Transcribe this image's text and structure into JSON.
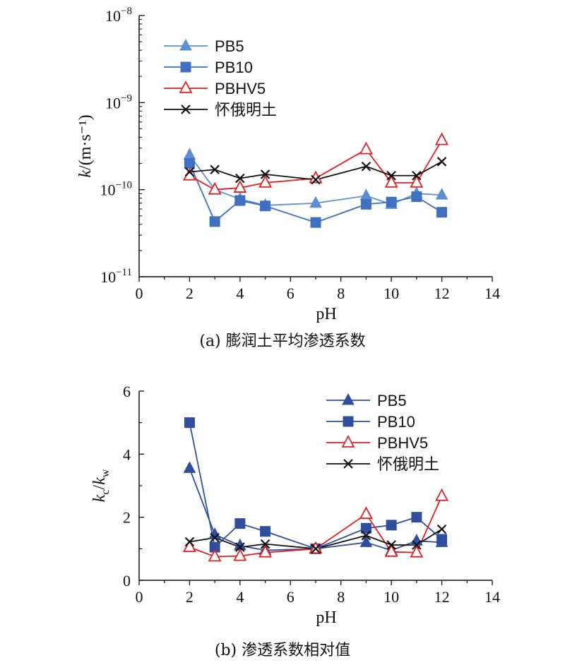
{
  "chart_data": [
    {
      "type": "line",
      "caption": "(a) 膨润土平均渗透系数",
      "xlabel": "pH",
      "ylabel": "k/(m·s⁻¹)",
      "yscale": "log",
      "xlim": [
        0,
        14
      ],
      "ylim": [
        1e-11,
        1e-08
      ],
      "x_ticks": [
        "0",
        "2",
        "4",
        "6",
        "8",
        "10",
        "12",
        "14"
      ],
      "y_ticks": [
        {
          "value": 1e-11,
          "base": "10",
          "exp": "−11"
        },
        {
          "value": 1e-10,
          "base": "10",
          "exp": "−10"
        },
        {
          "value": 1e-09,
          "base": "10",
          "exp": "−9"
        },
        {
          "value": 1e-08,
          "base": "10",
          "exp": "−8"
        }
      ],
      "legend_position": "top-left",
      "series": [
        {
          "name": "PB5",
          "color": "#5b8fd0",
          "marker": "triangle-filled",
          "x": [
            2,
            3,
            4,
            5,
            7,
            9,
            10,
            11,
            12
          ],
          "y": [
            2.5e-10,
            1e-10,
            7.8e-11,
            6.6e-11,
            7e-11,
            8.5e-11,
            6.8e-11,
            9e-11,
            8.7e-11
          ]
        },
        {
          "name": "PB10",
          "color": "#3f6fc0",
          "marker": "square-filled",
          "x": [
            2,
            3,
            4,
            5,
            7,
            9,
            10,
            11,
            12
          ],
          "y": [
            2e-10,
            4.3e-11,
            7.5e-11,
            6.5e-11,
            4.2e-11,
            6.8e-11,
            7.2e-11,
            8.3e-11,
            5.5e-11
          ]
        },
        {
          "name": "PBHV5",
          "color": "#e02020",
          "marker": "triangle-open",
          "x": [
            2,
            3,
            4,
            5,
            7,
            9,
            10,
            11,
            12
          ],
          "y": [
            1.45e-10,
            1e-10,
            1.05e-10,
            1.2e-10,
            1.35e-10,
            2.9e-10,
            1.2e-10,
            1.2e-10,
            3.7e-10
          ]
        },
        {
          "name": "怀俄明土",
          "color": "#111111",
          "marker": "x",
          "x": [
            2,
            3,
            4,
            5,
            7,
            9,
            10,
            11,
            12
          ],
          "y": [
            1.6e-10,
            1.7e-10,
            1.35e-10,
            1.5e-10,
            1.3e-10,
            1.85e-10,
            1.45e-10,
            1.45e-10,
            2.1e-10
          ]
        }
      ]
    },
    {
      "type": "line",
      "caption": "(b) 渗透系数相对值",
      "xlabel": "pH",
      "ylabel": "kc/kw",
      "ylabel_parts": {
        "k1": "k",
        "sub1": "c",
        "slash": "/",
        "k2": "k",
        "sub2": "w"
      },
      "yscale": "linear",
      "xlim": [
        0,
        14
      ],
      "ylim": [
        0,
        6
      ],
      "x_ticks": [
        "0",
        "2",
        "4",
        "6",
        "8",
        "10",
        "12",
        "14"
      ],
      "y_ticks": [
        "0",
        "2",
        "4",
        "6"
      ],
      "legend_position": "top-right",
      "series": [
        {
          "name": "PB5",
          "color": "#2f4f9e",
          "marker": "triangle-filled",
          "x": [
            2,
            3,
            4,
            5,
            7,
            9,
            10,
            11,
            12
          ],
          "y": [
            3.55,
            1.45,
            1.1,
            0.95,
            1.0,
            1.2,
            0.95,
            1.25,
            1.2
          ]
        },
        {
          "name": "PB10",
          "color": "#2f4f9e",
          "marker": "square-filled",
          "x": [
            2,
            3,
            4,
            5,
            7,
            9,
            10,
            11,
            12
          ],
          "y": [
            5.0,
            1.05,
            1.8,
            1.55,
            1.0,
            1.65,
            1.75,
            2.0,
            1.3
          ]
        },
        {
          "name": "PBHV5",
          "color": "#e02020",
          "marker": "triangle-open",
          "x": [
            2,
            3,
            4,
            5,
            7,
            9,
            10,
            11,
            12
          ],
          "y": [
            1.05,
            0.75,
            0.77,
            0.88,
            1.0,
            2.1,
            0.9,
            0.88,
            2.67
          ]
        },
        {
          "name": "怀俄明土",
          "color": "#111111",
          "marker": "x",
          "x": [
            2,
            3,
            4,
            5,
            7,
            9,
            10,
            11,
            12
          ],
          "y": [
            1.22,
            1.35,
            1.05,
            1.15,
            1.0,
            1.42,
            1.12,
            1.12,
            1.62
          ]
        }
      ]
    }
  ]
}
